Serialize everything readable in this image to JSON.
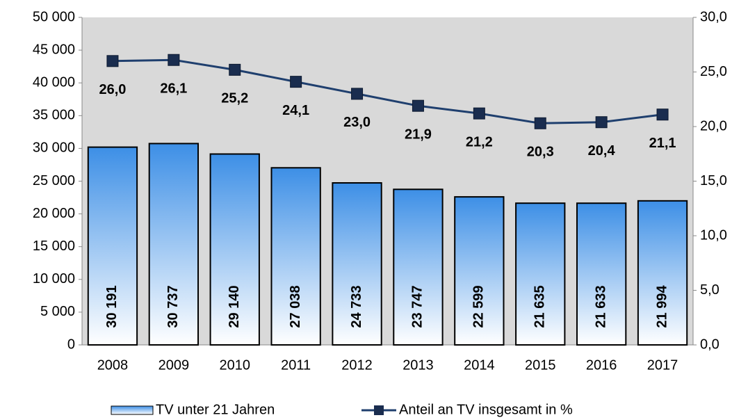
{
  "chart_data": {
    "type": "bar",
    "categories": [
      "2008",
      "2009",
      "2010",
      "2011",
      "2012",
      "2013",
      "2014",
      "2015",
      "2016",
      "2017"
    ],
    "series": [
      {
        "name": "TV unter 21 Jahren",
        "type": "bar",
        "color": "#3d8fe6",
        "values": [
          30191,
          30737,
          29140,
          27038,
          24733,
          23747,
          22599,
          21635,
          21633,
          21994
        ],
        "value_labels": [
          "30 191",
          "30 737",
          "29 140",
          "27 038",
          "24 733",
          "23 747",
          "22 599",
          "21 635",
          "21 633",
          "21 994"
        ]
      },
      {
        "name": "Anteil an TV insgesamt in %",
        "type": "line",
        "axis": "y2",
        "color": "#1f3f6e",
        "values": [
          26.0,
          26.1,
          25.2,
          24.1,
          23.0,
          21.9,
          21.2,
          20.3,
          20.4,
          21.1
        ],
        "value_labels": [
          "26,0",
          "26,1",
          "25,2",
          "24,1",
          "23,0",
          "21,9",
          "21,2",
          "20,3",
          "20,4",
          "21,1"
        ]
      }
    ],
    "ylim": [
      0,
      50000
    ],
    "yticks": [
      0,
      {
        "value": 5000,
        "label": "5 000"
      },
      {
        "value": 10000,
        "label": "10 000"
      },
      {
        "value": 15000,
        "label": "15 000"
      },
      {
        "value": 20000,
        "label": "20 000"
      },
      {
        "value": 25000,
        "label": "25 000"
      },
      {
        "value": 30000,
        "label": "30 000"
      },
      {
        "value": 35000,
        "label": "35 000"
      },
      {
        "value": 40000,
        "label": "40 000"
      },
      {
        "value": 45000,
        "label": "45 000"
      },
      {
        "value": 50000,
        "label": "50 000"
      }
    ],
    "y2lim": [
      0,
      30
    ],
    "y2ticks": [
      {
        "value": 0,
        "label": "0,0"
      },
      {
        "value": 5,
        "label": "5,0"
      },
      {
        "value": 10,
        "label": "10,0"
      },
      {
        "value": 15,
        "label": "15,0"
      },
      {
        "value": 20,
        "label": "20,0"
      },
      {
        "value": 25,
        "label": "25,0"
      },
      {
        "value": 30,
        "label": "30,0"
      }
    ],
    "grid": false,
    "legend": "bottom"
  }
}
